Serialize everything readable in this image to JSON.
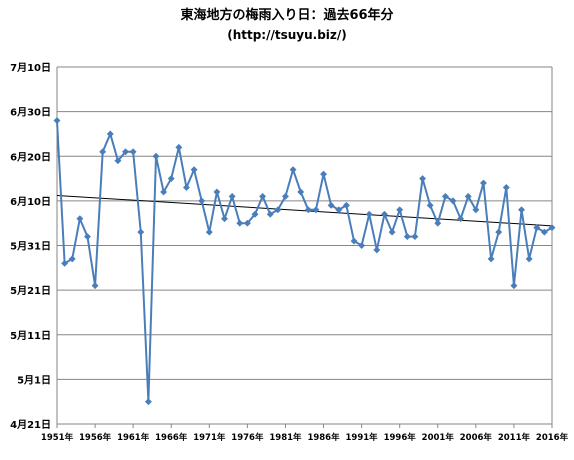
{
  "chart_data": {
    "type": "line",
    "title": "東海地方の梅雨入り日：過去66年分",
    "subtitle": "(http://tsuyu.biz/)",
    "y_tick_labels": [
      "7月10日",
      "6月30日",
      "6月20日",
      "6月10日",
      "5月31日",
      "5月21日",
      "5月11日",
      "5月1日",
      "4月21日"
    ],
    "y_tick_values": [
      100,
      90,
      80,
      70,
      60,
      50,
      40,
      30,
      20
    ],
    "ylim": [
      20,
      100
    ],
    "y_unit_note": "days after April 1 (4月21日=20 … 7月10日=100)",
    "x_tick_labels": [
      "1951年",
      "1956年",
      "1961年",
      "1966年",
      "1971年",
      "1976年",
      "1981年",
      "1986年",
      "1991年",
      "1996年",
      "2001年",
      "2006年",
      "2011年",
      "2016年"
    ],
    "x_tick_values": [
      1951,
      1956,
      1961,
      1966,
      1971,
      1976,
      1981,
      1986,
      1991,
      1996,
      2001,
      2006,
      2011,
      2016
    ],
    "xlim": [
      1951,
      2016
    ],
    "grid": true,
    "series": [
      {
        "color": "#4a7ebb",
        "x": [
          1951,
          1952,
          1953,
          1954,
          1955,
          1956,
          1957,
          1958,
          1959,
          1960,
          1961,
          1962,
          1963,
          1964,
          1965,
          1966,
          1967,
          1968,
          1969,
          1970,
          1971,
          1972,
          1973,
          1974,
          1975,
          1976,
          1977,
          1978,
          1979,
          1980,
          1981,
          1982,
          1983,
          1984,
          1985,
          1986,
          1987,
          1988,
          1989,
          1990,
          1991,
          1992,
          1993,
          1994,
          1995,
          1996,
          1997,
          1998,
          1999,
          2000,
          2001,
          2002,
          2003,
          2004,
          2005,
          2006,
          2007,
          2008,
          2009,
          2010,
          2011,
          2012,
          2013,
          2014,
          2015,
          2016
        ],
        "values": [
          88,
          56,
          57,
          66,
          62,
          51,
          81,
          85,
          79,
          81,
          81,
          63,
          25,
          80,
          72,
          75,
          82,
          73,
          77,
          70,
          63,
          72,
          66,
          71,
          65,
          65,
          67,
          71,
          67,
          68,
          71,
          77,
          72,
          68,
          68,
          76,
          69,
          68,
          69,
          61,
          60,
          67,
          59,
          67,
          63,
          68,
          62,
          62,
          75,
          69,
          65,
          71,
          70,
          66,
          71,
          68,
          74,
          57,
          63,
          73,
          51,
          68,
          57,
          64,
          63,
          64
        ]
      },
      {
        "color": "#000000",
        "type": "trendline",
        "x": [
          1951,
          2016
        ],
        "values": [
          71.2,
          64.4
        ]
      }
    ]
  }
}
